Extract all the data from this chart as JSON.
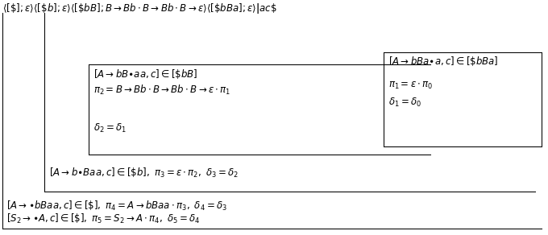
{
  "title_line": "$\\langle[\\$];\\varepsilon\\rangle\\langle[\\$b];\\varepsilon\\rangle\\langle[\\$bB];B \\rightarrow Bb \\cdot B \\rightarrow Bb \\cdot B \\rightarrow \\varepsilon\\rangle\\langle[\\$bBa];\\varepsilon\\rangle\\mathbf{|}ac\\$$",
  "box1_lines": [
    "$[A \\rightarrow bB{\\bullet}aa, c] \\in [\\$bB]$",
    "$\\pi_2 = B \\rightarrow Bb \\cdot B \\rightarrow Bb \\cdot B \\rightarrow \\varepsilon \\cdot \\pi_1$",
    "$\\delta_2 = \\delta_1$"
  ],
  "box2_lines": [
    "$[A \\rightarrow bBa{\\bullet}a, c] \\in [\\$bBa]$",
    "$\\pi_1 = \\varepsilon \\cdot \\pi_0$",
    "$\\delta_1 = \\delta_0$"
  ],
  "box3_line": "$[A \\rightarrow b{\\bullet}Baa, c] \\in [\\$b], \\ \\pi_3 = \\varepsilon \\cdot \\pi_2, \\ \\delta_3 = \\delta_2$",
  "box4_lines": [
    "$[A \\rightarrow {\\bullet}bBaa, c] \\in [\\$], \\ \\pi_4 = A \\rightarrow bBaa \\cdot \\pi_3, \\ \\delta_4 = \\delta_3$",
    "$[S_2 \\rightarrow {\\bullet}A, c] \\in [\\$], \\ \\pi_5 = S_2 \\rightarrow A \\cdot \\pi_4, \\ \\delta_5 = \\delta_4$"
  ],
  "bg_color": "#ffffff",
  "text_color": "#000000",
  "fontsize": 8.5
}
